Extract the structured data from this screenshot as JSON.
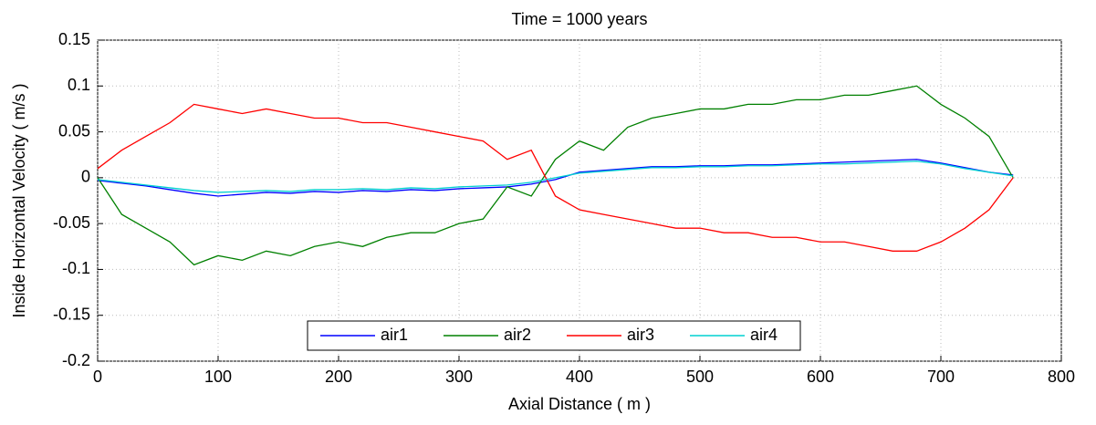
{
  "chart_data": {
    "type": "line",
    "title": "Time = 1000 years",
    "x_label": "Axial Distance ( m )",
    "y_label": "Inside Horizontal Velocity ( m/s )",
    "x": [
      0,
      20,
      40,
      60,
      80,
      100,
      120,
      140,
      160,
      180,
      200,
      220,
      240,
      260,
      280,
      300,
      320,
      340,
      360,
      380,
      400,
      420,
      440,
      460,
      480,
      500,
      520,
      540,
      560,
      580,
      600,
      620,
      640,
      660,
      680,
      700,
      720,
      740,
      760
    ],
    "series": [
      {
        "name": "air1",
        "color": "#0000ff",
        "values": [
          -0.003,
          -0.006,
          -0.009,
          -0.013,
          -0.017,
          -0.02,
          -0.018,
          -0.016,
          -0.017,
          -0.015,
          -0.016,
          -0.014,
          -0.015,
          -0.013,
          -0.014,
          -0.012,
          -0.011,
          -0.01,
          -0.007,
          -0.002,
          0.006,
          0.008,
          0.01,
          0.012,
          0.012,
          0.013,
          0.013,
          0.014,
          0.014,
          0.015,
          0.016,
          0.017,
          0.018,
          0.019,
          0.02,
          0.016,
          0.011,
          0.006,
          0.003
        ]
      },
      {
        "name": "air2",
        "color": "#008000",
        "values": [
          0,
          -0.04,
          -0.055,
          -0.07,
          -0.095,
          -0.085,
          -0.09,
          -0.08,
          -0.085,
          -0.075,
          -0.07,
          -0.075,
          -0.065,
          -0.06,
          -0.06,
          -0.05,
          -0.045,
          -0.01,
          -0.02,
          0.02,
          0.04,
          0.03,
          0.055,
          0.065,
          0.07,
          0.075,
          0.075,
          0.08,
          0.08,
          0.085,
          0.085,
          0.09,
          0.09,
          0.095,
          0.1,
          0.08,
          0.065,
          0.045,
          0
        ]
      },
      {
        "name": "air3",
        "color": "#ff0000",
        "values": [
          0.01,
          0.03,
          0.045,
          0.06,
          0.08,
          0.075,
          0.07,
          0.075,
          0.07,
          0.065,
          0.065,
          0.06,
          0.06,
          0.055,
          0.05,
          0.045,
          0.04,
          0.02,
          0.03,
          -0.02,
          -0.035,
          -0.04,
          -0.045,
          -0.05,
          -0.055,
          -0.055,
          -0.06,
          -0.06,
          -0.065,
          -0.065,
          -0.07,
          -0.07,
          -0.075,
          -0.08,
          -0.08,
          -0.07,
          -0.055,
          -0.035,
          0
        ]
      },
      {
        "name": "air4",
        "color": "#00d0d0",
        "values": [
          -0.002,
          -0.005,
          -0.008,
          -0.011,
          -0.014,
          -0.016,
          -0.015,
          -0.014,
          -0.015,
          -0.013,
          -0.013,
          -0.012,
          -0.013,
          -0.011,
          -0.012,
          -0.01,
          -0.009,
          -0.008,
          -0.005,
          0,
          0.005,
          0.007,
          0.009,
          0.011,
          0.011,
          0.012,
          0.012,
          0.013,
          0.013,
          0.014,
          0.015,
          0.015,
          0.016,
          0.017,
          0.018,
          0.015,
          0.01,
          0.006,
          0.002
        ]
      }
    ],
    "xlim": [
      0,
      800
    ],
    "xticks": [
      0,
      100,
      200,
      300,
      400,
      500,
      600,
      700,
      800
    ],
    "ylim": [
      -0.2,
      0.15
    ],
    "yticks": [
      -0.2,
      -0.15,
      -0.1,
      -0.05,
      0,
      0.05,
      0.1,
      0.15
    ],
    "grid": true,
    "legend": "bottom"
  }
}
